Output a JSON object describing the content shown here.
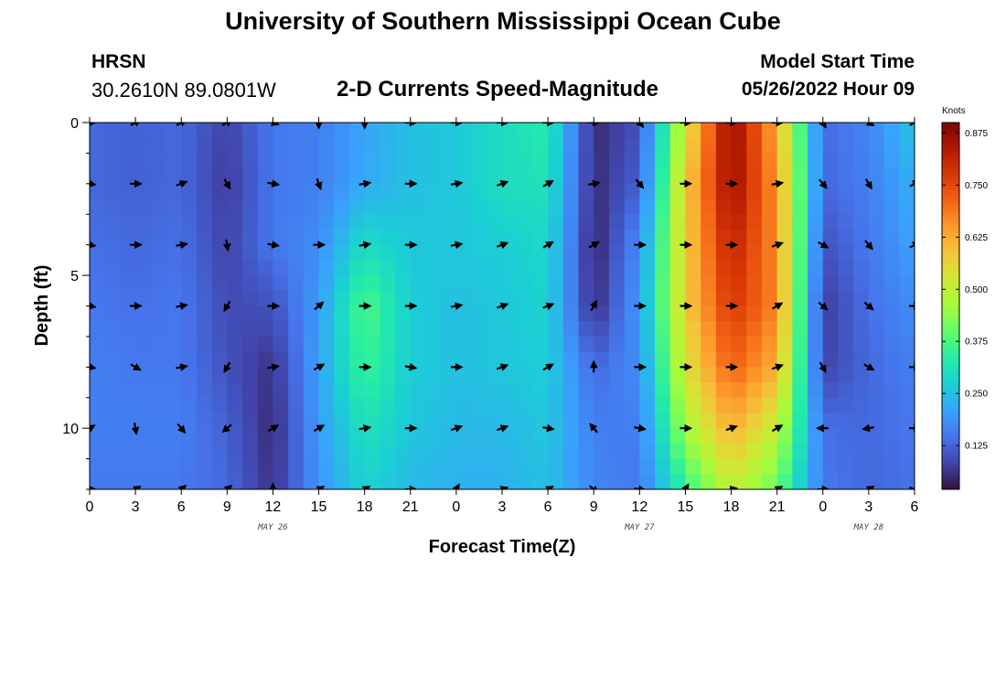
{
  "header": {
    "title_top": "University of Southern Mississippi Ocean Cube",
    "title_bottom": "University of Southern Mississippi Ocean Cube",
    "station": "HRSN",
    "coords": "30.2610N  89.0801W",
    "subtitle": "2-D Currents Speed-Magnitude",
    "model_start_label": "Model Start Time",
    "model_start_date": "05/26/2022 Hour 09"
  },
  "chart_data": {
    "type": "heatmap",
    "title": "2-D Currents Speed-Magnitude",
    "xlabel": "Forecast Time(Z)",
    "ylabel": "Depth (ft)",
    "x_tick_labels": [
      "0",
      "3",
      "6",
      "9",
      "12",
      "15",
      "18",
      "21",
      "0",
      "3",
      "6",
      "9",
      "12",
      "15",
      "18",
      "21",
      "0",
      "3",
      "6"
    ],
    "x_range_hours": [
      0,
      54
    ],
    "date_labels": [
      {
        "label": "MAY 26",
        "hour": 12
      },
      {
        "label": "MAY 27",
        "hour": 36
      },
      {
        "label": "MAY 28",
        "hour": 51
      }
    ],
    "y_ticks": [
      0,
      5,
      10
    ],
    "y_range": [
      0,
      12
    ],
    "y_inverted": true,
    "colorbar": {
      "label": "Knots",
      "ticks": [
        0.125,
        0.25,
        0.375,
        0.5,
        0.625,
        0.75,
        0.875
      ],
      "tick_labels": [
        "0.125",
        "0.250",
        "0.375",
        "0.500",
        "0.625",
        "0.750",
        "0.875"
      ],
      "range": [
        0.02,
        0.9
      ],
      "colors": [
        "#30123b",
        "#4145ab",
        "#4675ed",
        "#39a2fc",
        "#1bcfd4",
        "#24eca6",
        "#61fc6c",
        "#a4fc3b",
        "#d1e834",
        "#f3c63a",
        "#fe9b2d",
        "#f36315",
        "#d93806",
        "#b11901",
        "#7a0402"
      ]
    },
    "x_hours": [
      0,
      3,
      6,
      9,
      12,
      15,
      18,
      21,
      24,
      27,
      30,
      33,
      36,
      39,
      42,
      45,
      48,
      51,
      54
    ],
    "depths_ft": [
      0,
      2,
      4,
      6,
      8,
      10,
      12
    ],
    "speed_knots": [
      [
        0.13,
        0.12,
        0.13,
        0.08,
        0.15,
        0.16,
        0.21,
        0.25,
        0.26,
        0.3,
        0.33,
        0.05,
        0.1,
        0.52,
        0.88,
        0.62,
        0.13,
        0.17,
        0.26
      ],
      [
        0.13,
        0.12,
        0.13,
        0.07,
        0.15,
        0.16,
        0.22,
        0.25,
        0.26,
        0.3,
        0.31,
        0.05,
        0.12,
        0.57,
        0.87,
        0.65,
        0.13,
        0.16,
        0.23
      ],
      [
        0.14,
        0.13,
        0.14,
        0.08,
        0.15,
        0.18,
        0.3,
        0.26,
        0.26,
        0.27,
        0.29,
        0.04,
        0.18,
        0.57,
        0.82,
        0.66,
        0.1,
        0.15,
        0.21
      ],
      [
        0.15,
        0.14,
        0.15,
        0.09,
        0.1,
        0.2,
        0.38,
        0.27,
        0.25,
        0.26,
        0.28,
        0.05,
        0.2,
        0.57,
        0.78,
        0.67,
        0.07,
        0.14,
        0.18
      ],
      [
        0.16,
        0.15,
        0.15,
        0.1,
        0.06,
        0.21,
        0.36,
        0.27,
        0.25,
        0.26,
        0.27,
        0.13,
        0.18,
        0.53,
        0.72,
        0.62,
        0.08,
        0.13,
        0.16
      ],
      [
        0.16,
        0.16,
        0.16,
        0.12,
        0.05,
        0.2,
        0.31,
        0.26,
        0.24,
        0.24,
        0.26,
        0.16,
        0.16,
        0.46,
        0.62,
        0.5,
        0.14,
        0.13,
        0.15
      ],
      [
        0.15,
        0.15,
        0.15,
        0.13,
        0.06,
        0.19,
        0.28,
        0.24,
        0.23,
        0.23,
        0.25,
        0.17,
        0.15,
        0.35,
        0.5,
        0.4,
        0.15,
        0.13,
        0.14
      ]
    ],
    "direction_deg": [
      [
        90,
        60,
        60,
        60,
        110,
        180,
        180,
        90,
        90,
        90,
        90,
        90,
        140,
        90,
        90,
        90,
        150,
        120,
        60
      ],
      [
        100,
        90,
        70,
        150,
        100,
        160,
        80,
        90,
        80,
        70,
        60,
        80,
        140,
        90,
        90,
        80,
        140,
        150,
        60
      ],
      [
        100,
        90,
        80,
        170,
        100,
        90,
        80,
        90,
        80,
        70,
        60,
        60,
        90,
        90,
        90,
        70,
        120,
        140,
        60
      ],
      [
        100,
        90,
        80,
        210,
        90,
        50,
        90,
        90,
        80,
        70,
        70,
        30,
        90,
        90,
        90,
        60,
        130,
        130,
        90
      ],
      [
        100,
        120,
        80,
        210,
        80,
        60,
        90,
        100,
        90,
        70,
        60,
        0,
        90,
        90,
        90,
        70,
        150,
        120,
        90
      ],
      [
        60,
        170,
        140,
        230,
        60,
        60,
        80,
        90,
        70,
        70,
        100,
        320,
        100,
        90,
        70,
        60,
        270,
        260,
        90
      ],
      [
        90,
        60,
        50,
        50,
        0,
        60,
        60,
        90,
        30,
        70,
        60,
        130,
        100,
        30,
        80,
        60,
        90,
        60,
        110
      ]
    ]
  }
}
